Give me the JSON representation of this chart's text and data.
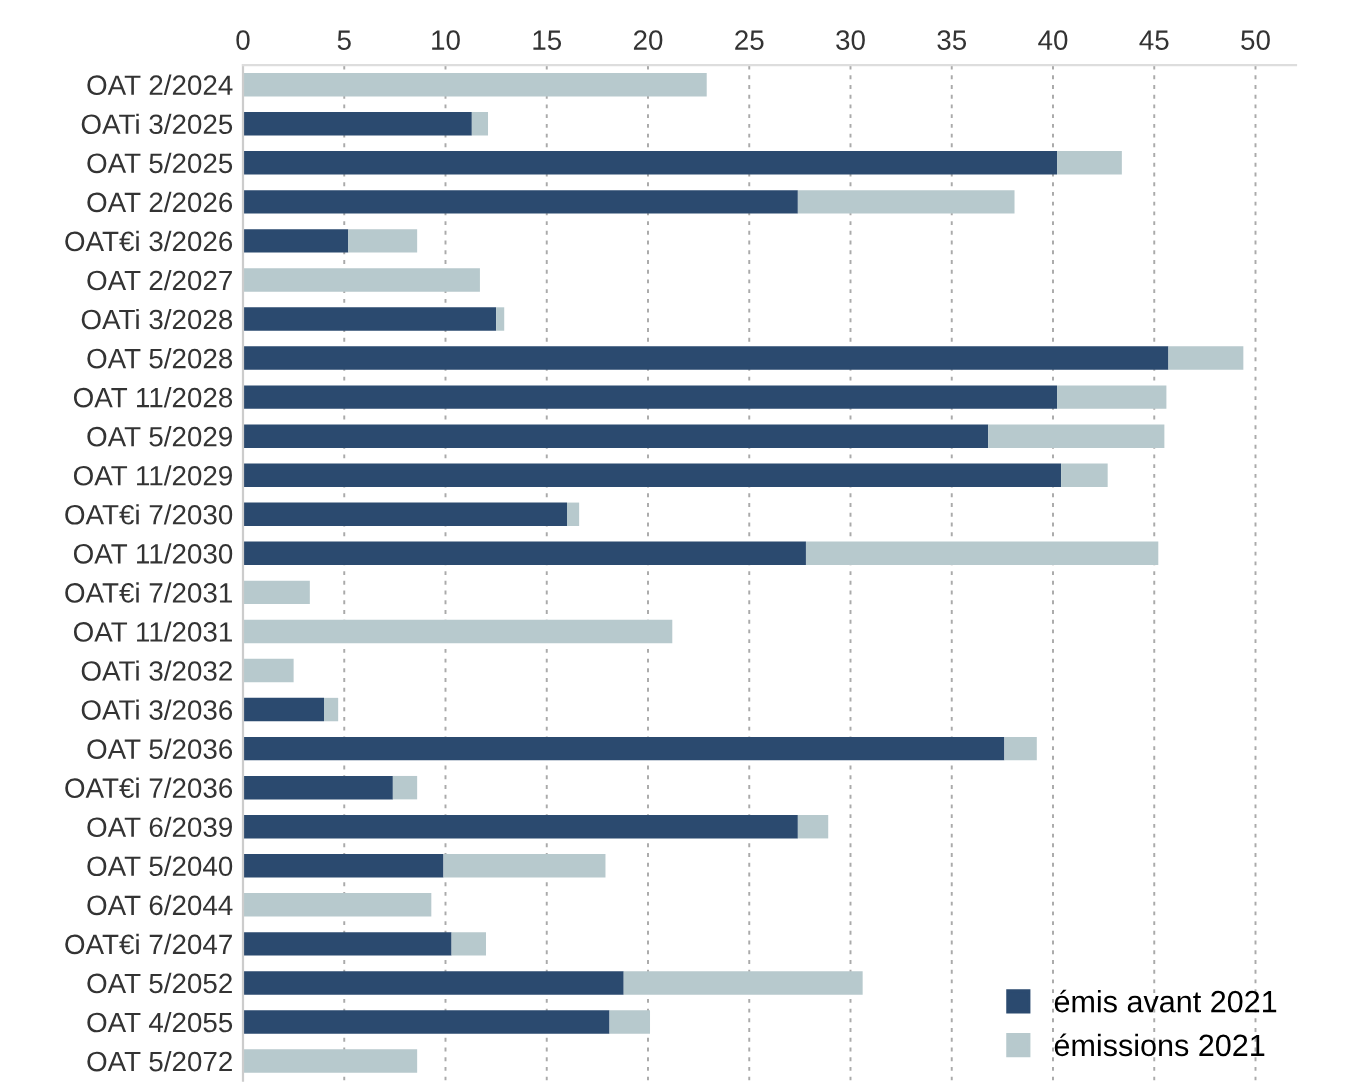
{
  "chart_data": {
    "type": "bar",
    "orientation": "horizontal",
    "stacked": true,
    "categories": [
      "OAT 2/2024",
      "OATi 3/2025",
      "OAT 5/2025",
      "OAT 2/2026",
      "OAT€i 3/2026",
      "OAT 2/2027",
      "OATi 3/2028",
      "OAT 5/2028",
      "OAT 11/2028",
      "OAT 5/2029",
      "OAT 11/2029",
      "OAT€i 7/2030",
      "OAT 11/2030",
      "OAT€i 7/2031",
      "OAT 11/2031",
      "OATi 3/2032",
      "OATi 3/2036",
      "OAT 5/2036",
      "OAT€i 7/2036",
      "OAT 6/2039",
      "OAT 5/2040",
      "OAT 6/2044",
      "OAT€i 7/2047",
      "OAT 5/2052",
      "OAT 4/2055",
      "OAT 5/2072"
    ],
    "series": [
      {
        "name": "émis avant 2021",
        "color": "#2b4a6f",
        "values": [
          null,
          11.3,
          40.2,
          27.4,
          5.2,
          null,
          12.5,
          45.7,
          40.2,
          36.8,
          40.4,
          16.0,
          27.8,
          null,
          null,
          null,
          4.0,
          37.6,
          7.4,
          27.4,
          9.9,
          null,
          10.3,
          18.8,
          18.1,
          null
        ]
      },
      {
        "name": "émissions 2021",
        "color": "#b7c9cd",
        "values": [
          22.9,
          0.8,
          3.2,
          10.7,
          3.4,
          11.7,
          0.4,
          3.7,
          5.4,
          8.7,
          2.3,
          0.6,
          17.4,
          3.3,
          21.2,
          2.5,
          0.7,
          1.6,
          1.2,
          1.5,
          8.0,
          9.3,
          1.7,
          11.8,
          2.0,
          8.6
        ]
      }
    ],
    "xlim": [
      0,
      52
    ],
    "xticks": [
      0,
      5,
      10,
      15,
      20,
      25,
      30,
      35,
      40,
      45,
      50
    ],
    "grid": "x",
    "legend": "bottom right"
  }
}
